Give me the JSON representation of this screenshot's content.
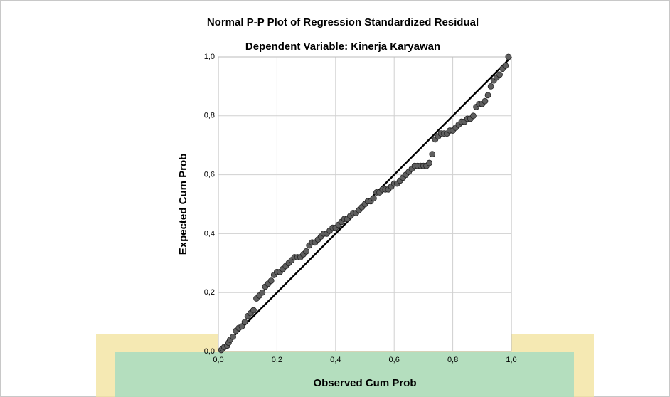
{
  "chart_data": {
    "type": "scatter",
    "title": "Normal P-P Plot of Regression Standardized Residual",
    "subtitle": "Dependent Variable: Kinerja Karyawan",
    "x_label": "Observed Cum Prob",
    "y_label": "Expected Cum Prob",
    "x": [
      0.01,
      0.015,
      0.02,
      0.03,
      0.035,
      0.04,
      0.05,
      0.06,
      0.07,
      0.08,
      0.09,
      0.1,
      0.11,
      0.12,
      0.13,
      0.14,
      0.15,
      0.16,
      0.17,
      0.18,
      0.19,
      0.2,
      0.21,
      0.22,
      0.23,
      0.24,
      0.25,
      0.26,
      0.27,
      0.28,
      0.29,
      0.3,
      0.31,
      0.32,
      0.33,
      0.34,
      0.35,
      0.36,
      0.37,
      0.38,
      0.39,
      0.4,
      0.41,
      0.42,
      0.43,
      0.44,
      0.45,
      0.46,
      0.47,
      0.48,
      0.49,
      0.5,
      0.51,
      0.52,
      0.53,
      0.54,
      0.55,
      0.56,
      0.57,
      0.58,
      0.59,
      0.6,
      0.61,
      0.62,
      0.63,
      0.64,
      0.65,
      0.66,
      0.67,
      0.68,
      0.69,
      0.7,
      0.71,
      0.72,
      0.73,
      0.74,
      0.75,
      0.76,
      0.77,
      0.78,
      0.79,
      0.8,
      0.81,
      0.82,
      0.83,
      0.84,
      0.85,
      0.86,
      0.87,
      0.88,
      0.89,
      0.9,
      0.91,
      0.92,
      0.93,
      0.94,
      0.95,
      0.96,
      0.97,
      0.98,
      0.99
    ],
    "values": [
      0.005,
      0.01,
      0.015,
      0.02,
      0.03,
      0.04,
      0.05,
      0.07,
      0.08,
      0.085,
      0.1,
      0.12,
      0.13,
      0.14,
      0.18,
      0.19,
      0.2,
      0.22,
      0.23,
      0.24,
      0.26,
      0.27,
      0.27,
      0.28,
      0.29,
      0.3,
      0.31,
      0.32,
      0.32,
      0.32,
      0.33,
      0.34,
      0.36,
      0.37,
      0.37,
      0.38,
      0.39,
      0.4,
      0.4,
      0.41,
      0.42,
      0.42,
      0.43,
      0.44,
      0.45,
      0.45,
      0.46,
      0.47,
      0.47,
      0.48,
      0.49,
      0.5,
      0.51,
      0.51,
      0.52,
      0.54,
      0.54,
      0.55,
      0.55,
      0.55,
      0.56,
      0.57,
      0.57,
      0.58,
      0.59,
      0.6,
      0.61,
      0.62,
      0.63,
      0.63,
      0.63,
      0.63,
      0.63,
      0.64,
      0.67,
      0.72,
      0.73,
      0.74,
      0.74,
      0.74,
      0.75,
      0.75,
      0.76,
      0.77,
      0.78,
      0.78,
      0.79,
      0.79,
      0.8,
      0.83,
      0.84,
      0.84,
      0.85,
      0.87,
      0.9,
      0.92,
      0.93,
      0.94,
      0.96,
      0.97,
      1.0
    ],
    "color": "#5f5f5f",
    "xlim": [
      0,
      1
    ],
    "ylim": [
      0,
      1
    ],
    "xticks": [
      {
        "value": 0,
        "label": "0,0"
      },
      {
        "value": 0.2,
        "label": "0,2"
      },
      {
        "value": 0.4,
        "label": "0,4"
      },
      {
        "value": 0.6,
        "label": "0,6"
      },
      {
        "value": 0.8,
        "label": "0,8"
      },
      {
        "value": 1,
        "label": "1,0"
      }
    ],
    "yticks": [
      {
        "value": 0,
        "label": "0,0"
      },
      {
        "value": 0.2,
        "label": "0,2"
      },
      {
        "value": 0.4,
        "label": "0,4"
      },
      {
        "value": 0.6,
        "label": "0,6"
      },
      {
        "value": 0.8,
        "label": "0,8"
      },
      {
        "value": 1,
        "label": "1,0"
      }
    ],
    "grid": true,
    "reference_line": true
  }
}
